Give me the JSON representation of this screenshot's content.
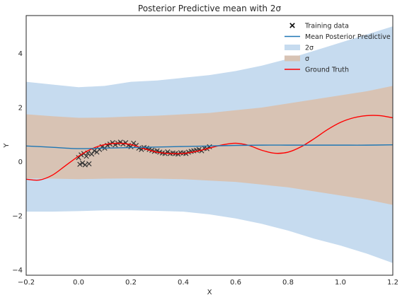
{
  "chart_data": {
    "type": "line",
    "title": "Posterior Predictive mean with 2σ",
    "xlabel": "X",
    "ylabel": "Y",
    "xlim": [
      -0.2,
      1.2
    ],
    "ylim": [
      -4.2,
      5.4
    ],
    "xticks": [
      -0.2,
      0.0,
      0.2,
      0.4,
      0.6,
      0.8,
      1.0,
      1.2
    ],
    "xtick_labels": [
      "−0.2",
      "0.0",
      "0.2",
      "0.4",
      "0.6",
      "0.8",
      "1.0",
      "1.2"
    ],
    "yticks": [
      -4,
      -2,
      0,
      2,
      4
    ],
    "ytick_labels": [
      "−4",
      "−2",
      "0",
      "2",
      "4"
    ],
    "grid": false,
    "legend_position": "top-right",
    "legend": [
      {
        "label": "Training data",
        "kind": "marker",
        "color": "#000000"
      },
      {
        "label": "Mean Posterior Predictive",
        "kind": "line",
        "color": "#1f77b4"
      },
      {
        "label": "2σ",
        "kind": "patch",
        "color": "#c6dbef"
      },
      {
        "label": "σ",
        "kind": "patch",
        "color": "#d8c3b4"
      },
      {
        "label": "Ground Truth",
        "kind": "line",
        "color": "#ff0000"
      }
    ],
    "series": {
      "x": [
        -0.2,
        -0.1,
        0.0,
        0.1,
        0.2,
        0.3,
        0.4,
        0.5,
        0.6,
        0.7,
        0.8,
        0.9,
        1.0,
        1.1,
        1.2
      ],
      "mean": [
        0.58,
        0.53,
        0.48,
        0.5,
        0.52,
        0.54,
        0.56,
        0.58,
        0.6,
        0.61,
        0.61,
        0.61,
        0.61,
        0.61,
        0.62
      ],
      "two_sigma_upper": [
        2.95,
        2.85,
        2.75,
        2.8,
        2.95,
        3.0,
        3.1,
        3.2,
        3.35,
        3.55,
        3.8,
        4.1,
        4.4,
        4.7,
        5.0
      ],
      "two_sigma_lower": [
        -1.85,
        -1.85,
        -1.83,
        -1.8,
        -1.8,
        -1.82,
        -1.85,
        -1.95,
        -2.1,
        -2.3,
        -2.55,
        -2.85,
        -3.1,
        -3.4,
        -3.75
      ],
      "sigma_upper": [
        1.75,
        1.68,
        1.62,
        1.63,
        1.67,
        1.7,
        1.75,
        1.8,
        1.9,
        2.0,
        2.15,
        2.3,
        2.45,
        2.6,
        2.8
      ],
      "sigma_lower": [
        -0.62,
        -0.63,
        -0.65,
        -0.63,
        -0.62,
        -0.63,
        -0.65,
        -0.7,
        -0.75,
        -0.85,
        -0.95,
        -1.1,
        -1.25,
        -1.4,
        -1.6
      ]
    },
    "ground_truth": {
      "x": [
        -0.2,
        -0.15,
        -0.1,
        -0.05,
        0.0,
        0.05,
        0.1,
        0.15,
        0.2,
        0.25,
        0.3,
        0.35,
        0.4,
        0.45,
        0.5,
        0.55,
        0.6,
        0.65,
        0.7,
        0.75,
        0.8,
        0.85,
        0.9,
        0.95,
        1.0,
        1.05,
        1.1,
        1.15,
        1.2
      ],
      "y": [
        -0.65,
        -0.68,
        -0.5,
        -0.15,
        0.2,
        0.47,
        0.63,
        0.68,
        0.63,
        0.48,
        0.35,
        0.3,
        0.3,
        0.38,
        0.5,
        0.62,
        0.68,
        0.6,
        0.42,
        0.31,
        0.35,
        0.55,
        0.85,
        1.18,
        1.45,
        1.62,
        1.7,
        1.7,
        1.62
      ]
    },
    "training_data": {
      "x": [
        0.0,
        0.005,
        0.01,
        0.015,
        0.02,
        0.025,
        0.03,
        0.035,
        0.04,
        0.05,
        0.06,
        0.07,
        0.08,
        0.09,
        0.1,
        0.11,
        0.12,
        0.13,
        0.14,
        0.15,
        0.16,
        0.17,
        0.18,
        0.19,
        0.2,
        0.21,
        0.22,
        0.23,
        0.24,
        0.25,
        0.26,
        0.27,
        0.28,
        0.29,
        0.3,
        0.31,
        0.32,
        0.33,
        0.34,
        0.35,
        0.36,
        0.37,
        0.38,
        0.39,
        0.4,
        0.41,
        0.42,
        0.43,
        0.44,
        0.45,
        0.46,
        0.47,
        0.48,
        0.49,
        0.5
      ],
      "y": [
        0.15,
        -0.1,
        0.25,
        -0.05,
        0.3,
        -0.12,
        0.2,
        0.32,
        -0.08,
        0.28,
        0.4,
        0.35,
        0.45,
        0.55,
        0.5,
        0.6,
        0.65,
        0.7,
        0.62,
        0.68,
        0.72,
        0.65,
        0.7,
        0.6,
        0.55,
        0.68,
        0.6,
        0.5,
        0.45,
        0.52,
        0.5,
        0.45,
        0.42,
        0.38,
        0.4,
        0.35,
        0.32,
        0.3,
        0.36,
        0.3,
        0.32,
        0.3,
        0.28,
        0.33,
        0.32,
        0.3,
        0.35,
        0.38,
        0.4,
        0.42,
        0.45,
        0.4,
        0.5,
        0.48,
        0.55
      ]
    },
    "colors": {
      "two_sigma": "#c6dbef",
      "sigma": "#d8c3b4",
      "mean": "#1f77b4",
      "ground_truth": "#ff0000",
      "training": "#333333",
      "axes": "#262626"
    }
  }
}
